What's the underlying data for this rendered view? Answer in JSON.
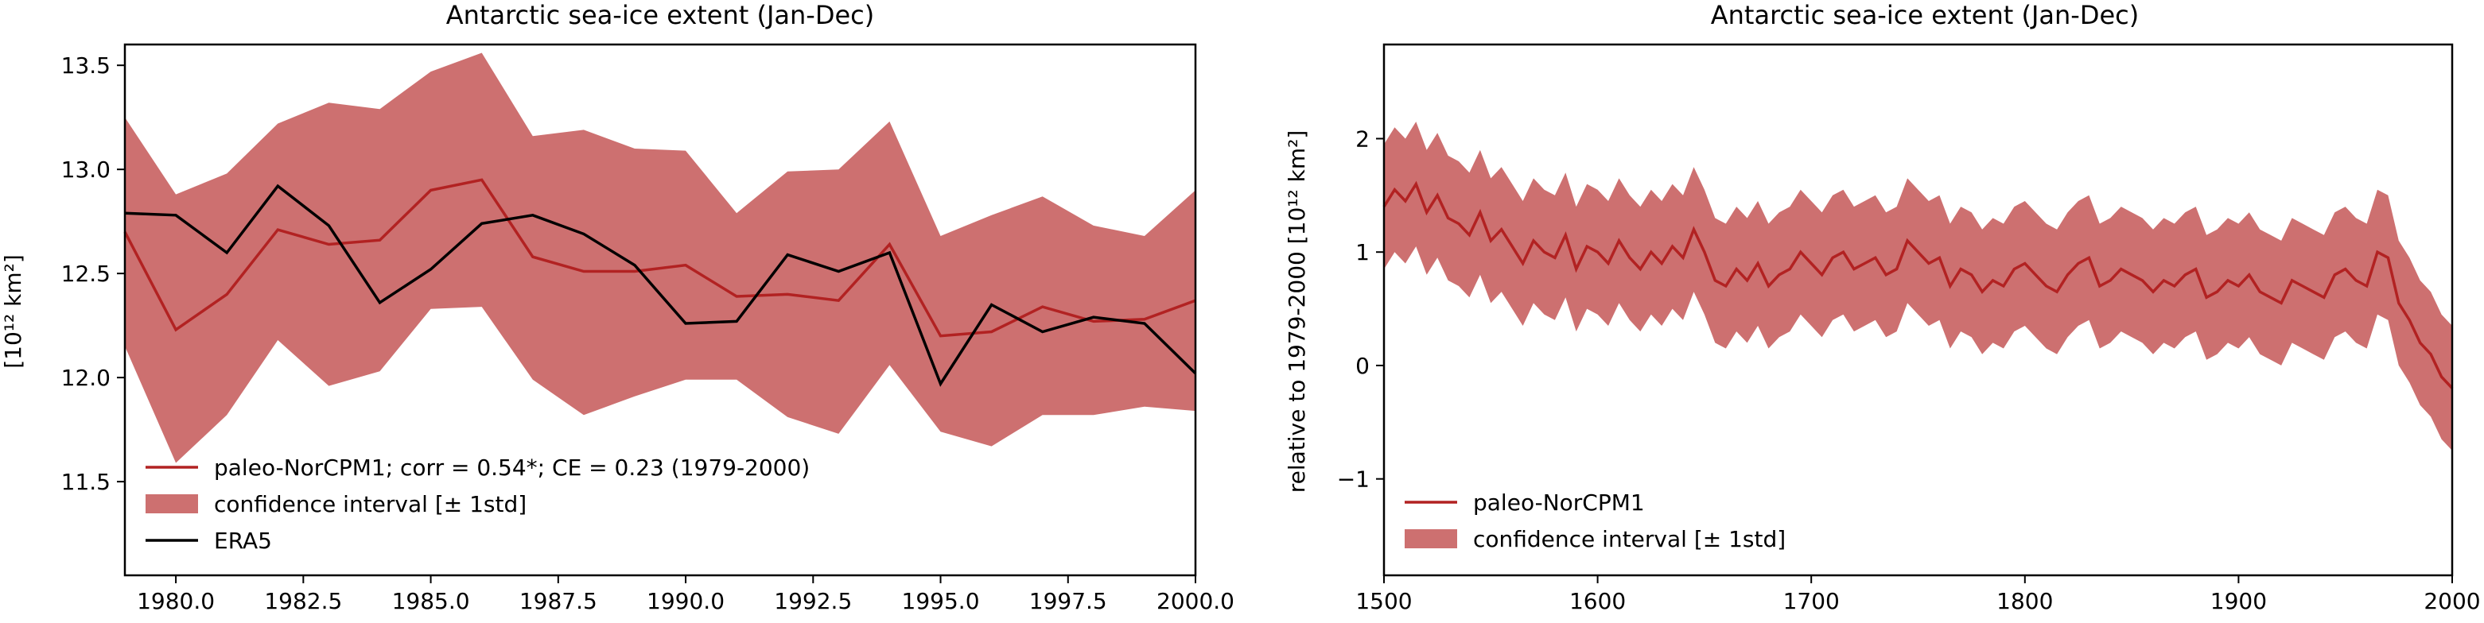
{
  "colors": {
    "paleo_line": "#b22222",
    "band_fill": "#cd7070",
    "era5_line": "#000000",
    "axes": "#000000",
    "background": "#ffffff"
  },
  "chart_data": [
    {
      "type": "line",
      "title": "Antarctic sea-ice extent (Jan-Dec)",
      "xlabel": "",
      "ylabel": "[10¹² km²]",
      "xlim": [
        1979,
        2000
      ],
      "ylim": [
        11.05,
        13.6
      ],
      "xticks": [
        1980.0,
        1982.5,
        1985.0,
        1987.5,
        1990.0,
        1992.5,
        1995.0,
        1997.5,
        2000.0
      ],
      "xtick_labels": [
        "1980.0",
        "1982.5",
        "1985.0",
        "1987.5",
        "1990.0",
        "1992.5",
        "1995.0",
        "1997.5",
        "2000.0"
      ],
      "yticks": [
        11.5,
        12.0,
        12.5,
        13.0,
        13.5
      ],
      "ytick_labels": [
        "11.5",
        "12.0",
        "12.5",
        "13.0",
        "13.5"
      ],
      "grid": false,
      "legend_position": "lower-left",
      "x": [
        1979,
        1980,
        1981,
        1982,
        1983,
        1984,
        1985,
        1986,
        1987,
        1988,
        1989,
        1990,
        1991,
        1992,
        1993,
        1994,
        1995,
        1996,
        1997,
        1998,
        1999,
        2000
      ],
      "series": [
        {
          "name": "paleo-NorCPM1; corr = 0.54*; CE = 0.23 (1979-2000)",
          "kind": "line",
          "color": "#b22222",
          "values": [
            12.7,
            12.23,
            12.4,
            12.71,
            12.64,
            12.66,
            12.9,
            12.95,
            12.58,
            12.51,
            12.51,
            12.54,
            12.39,
            12.4,
            12.37,
            12.64,
            12.2,
            12.22,
            12.34,
            12.27,
            12.28,
            12.37
          ]
        },
        {
          "name": "confidence interval [± 1std]",
          "kind": "band",
          "color": "#cd7070",
          "upper": [
            13.25,
            12.88,
            12.98,
            13.22,
            13.32,
            13.29,
            13.47,
            13.56,
            13.16,
            13.19,
            13.1,
            13.09,
            12.79,
            12.99,
            13.0,
            13.23,
            12.68,
            12.78,
            12.87,
            12.73,
            12.68,
            12.9
          ],
          "lower": [
            12.15,
            11.59,
            11.82,
            12.18,
            11.96,
            12.03,
            12.33,
            12.34,
            11.99,
            11.82,
            11.91,
            11.99,
            11.99,
            11.81,
            11.73,
            12.06,
            11.74,
            11.67,
            11.82,
            11.82,
            11.86,
            11.84
          ]
        },
        {
          "name": "ERA5",
          "kind": "line",
          "color": "#000000",
          "values": [
            12.79,
            12.78,
            12.6,
            12.92,
            12.73,
            12.36,
            12.52,
            12.74,
            12.78,
            12.69,
            12.54,
            12.26,
            12.27,
            12.59,
            12.51,
            12.6,
            11.97,
            12.35,
            12.22,
            12.29,
            12.26,
            12.02
          ]
        }
      ]
    },
    {
      "type": "line",
      "title": "Antarctic sea-ice extent (Jan-Dec)",
      "xlabel": "",
      "ylabel": "relative to 1979-2000 [10¹² km²]",
      "xlim": [
        1500,
        2000
      ],
      "ylim": [
        -1.85,
        2.83
      ],
      "xticks": [
        1500,
        1600,
        1700,
        1800,
        1900,
        2000
      ],
      "xtick_labels": [
        "1500",
        "1600",
        "1700",
        "1800",
        "1900",
        "2000"
      ],
      "yticks": [
        -1,
        0,
        1,
        2
      ],
      "ytick_labels": [
        "−1",
        "0",
        "1",
        "2"
      ],
      "grid": false,
      "legend_position": "lower-left",
      "x_start": 1500,
      "x_step": 5,
      "band_halfwidth": 0.55,
      "series": [
        {
          "name": "paleo-NorCPM1",
          "kind": "line",
          "color": "#b22222",
          "values": [
            1.4,
            1.55,
            1.45,
            1.6,
            1.35,
            1.5,
            1.3,
            1.25,
            1.15,
            1.35,
            1.1,
            1.2,
            1.05,
            0.9,
            1.1,
            1.0,
            0.95,
            1.15,
            0.85,
            1.05,
            1.0,
            0.9,
            1.1,
            0.95,
            0.85,
            1.0,
            0.9,
            1.05,
            0.95,
            1.2,
            1.0,
            0.75,
            0.7,
            0.85,
            0.75,
            0.9,
            0.7,
            0.8,
            0.85,
            1.0,
            0.9,
            0.8,
            0.95,
            1.0,
            0.85,
            0.9,
            0.95,
            0.8,
            0.85,
            1.1,
            1.0,
            0.9,
            0.95,
            0.7,
            0.85,
            0.8,
            0.65,
            0.75,
            0.7,
            0.85,
            0.9,
            0.8,
            0.7,
            0.65,
            0.8,
            0.9,
            0.95,
            0.7,
            0.75,
            0.85,
            0.8,
            0.75,
            0.65,
            0.75,
            0.7,
            0.8,
            0.85,
            0.6,
            0.65,
            0.75,
            0.7,
            0.8,
            0.65,
            0.6,
            0.55,
            0.75,
            0.7,
            0.65,
            0.6,
            0.8,
            0.85,
            0.75,
            0.7,
            1.0,
            0.95,
            0.55,
            0.4,
            0.2,
            0.1,
            -0.1,
            -0.2
          ]
        },
        {
          "name": "confidence interval [± 1std]",
          "kind": "band",
          "color": "#cd7070"
        }
      ]
    }
  ]
}
